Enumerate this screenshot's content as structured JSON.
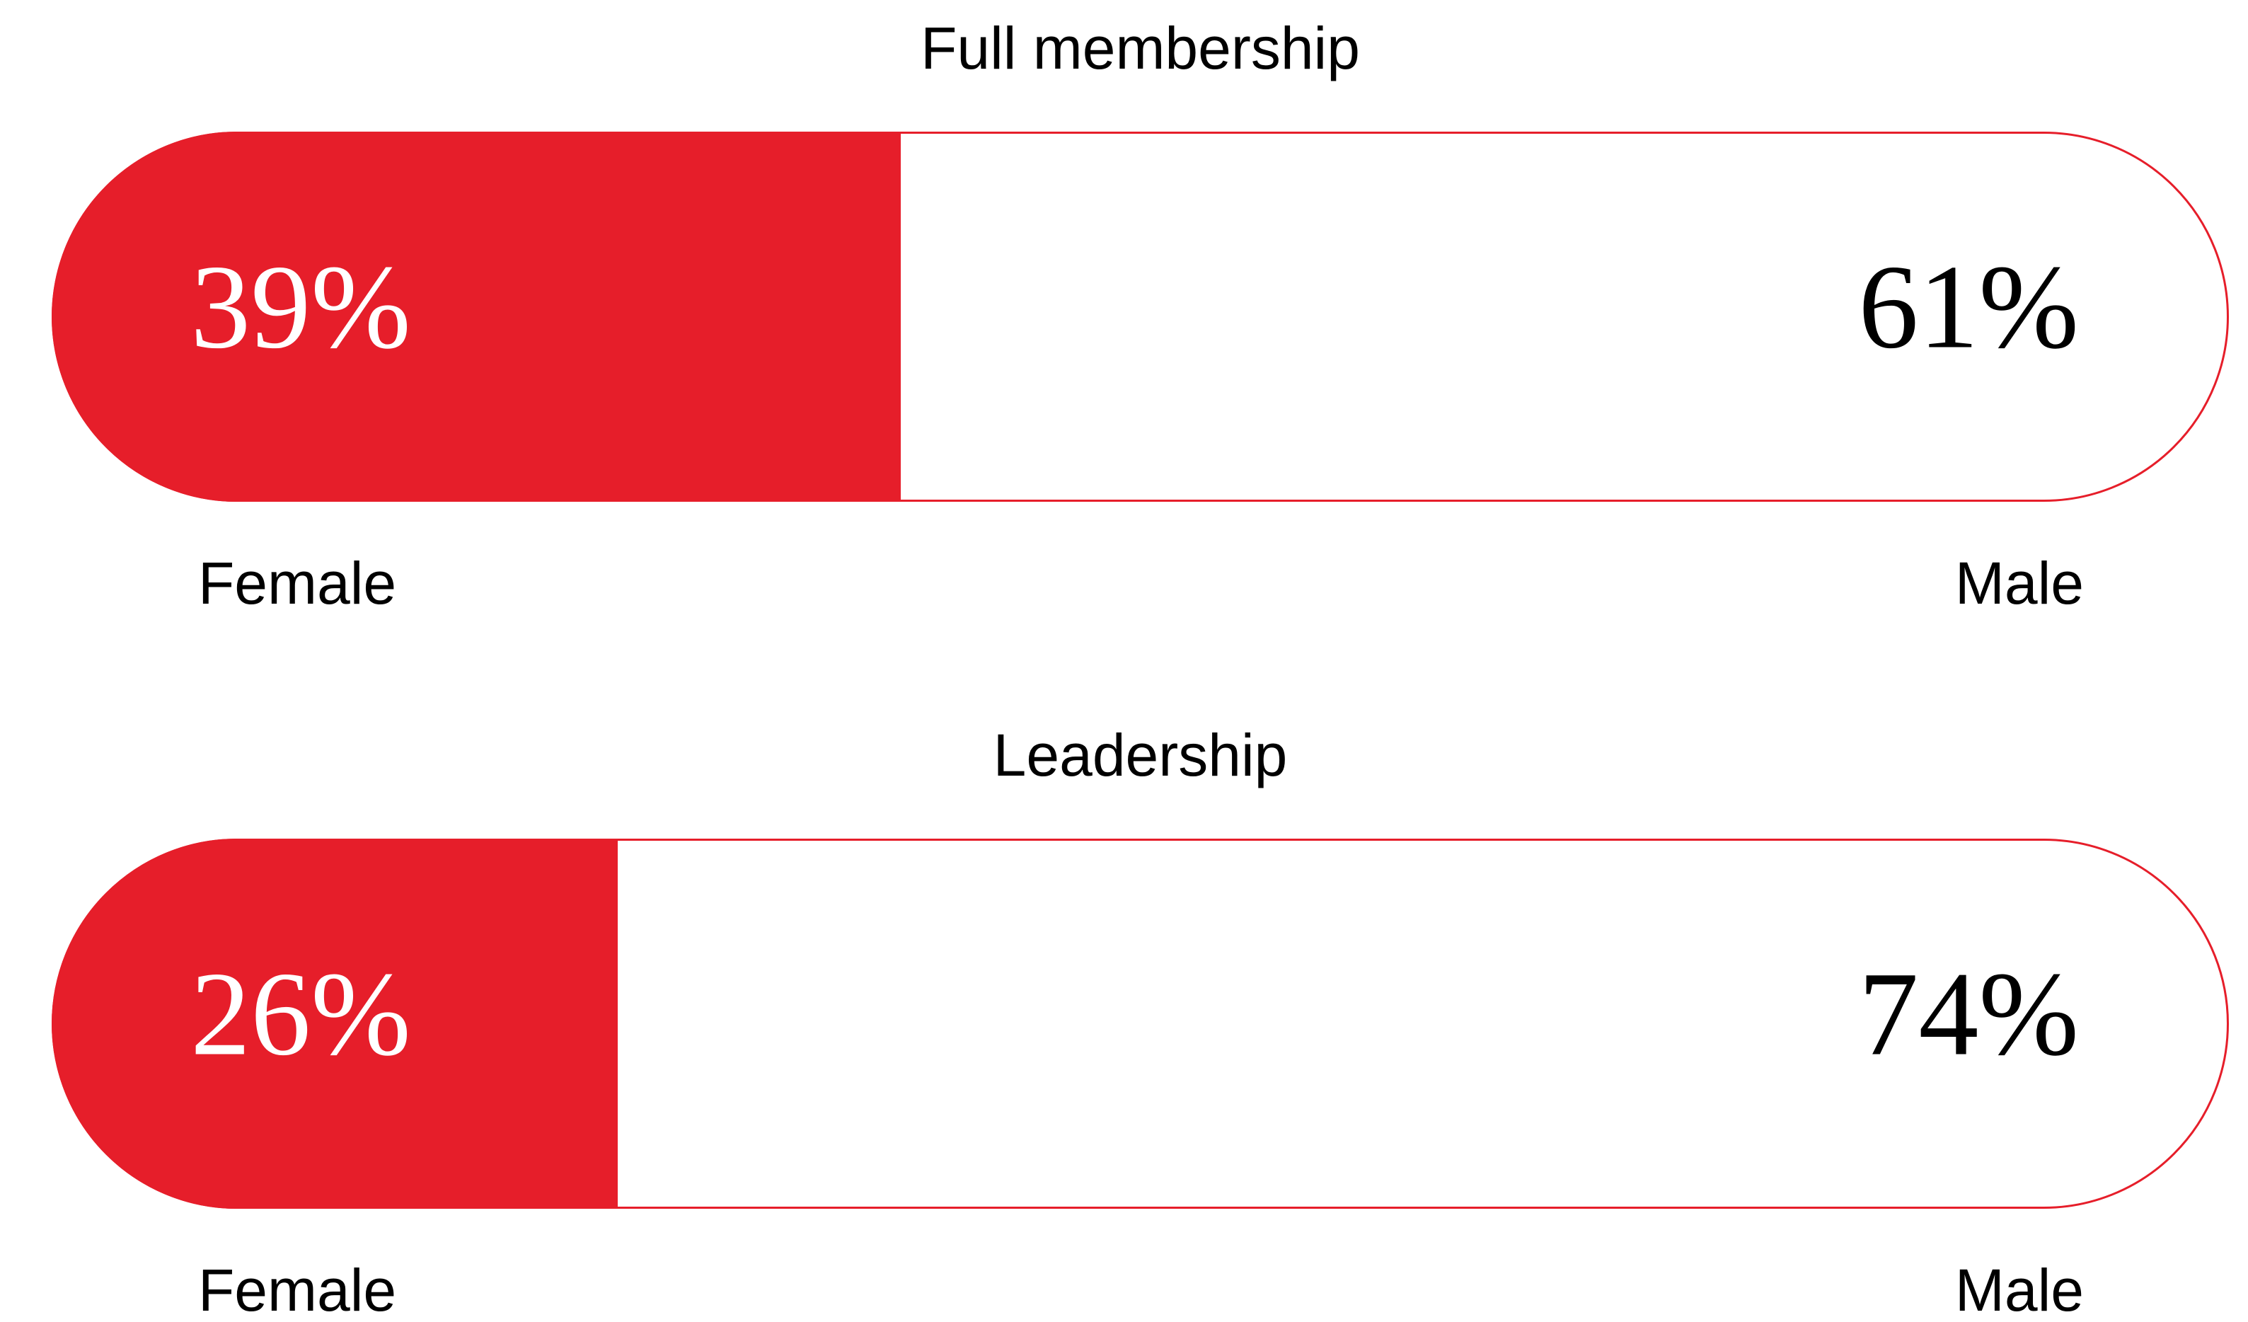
{
  "chart_data": [
    {
      "type": "bar",
      "title": "Full membership",
      "xlim": [
        0,
        100
      ],
      "series": [
        {
          "name": "Female",
          "color": "#e61e2a",
          "values": [
            39
          ],
          "value_labels": [
            "39%"
          ]
        },
        {
          "name": "Male",
          "color": "#ffffff",
          "values": [
            61
          ],
          "value_labels": [
            "61%"
          ]
        }
      ]
    },
    {
      "type": "bar",
      "title": "Leadership",
      "xlim": [
        0,
        100
      ],
      "series": [
        {
          "name": "Female",
          "color": "#e61e2a",
          "values": [
            26
          ],
          "value_labels": [
            "26%"
          ]
        },
        {
          "name": "Male",
          "color": "#ffffff",
          "values": [
            74
          ],
          "value_labels": [
            "74%"
          ]
        }
      ]
    }
  ]
}
